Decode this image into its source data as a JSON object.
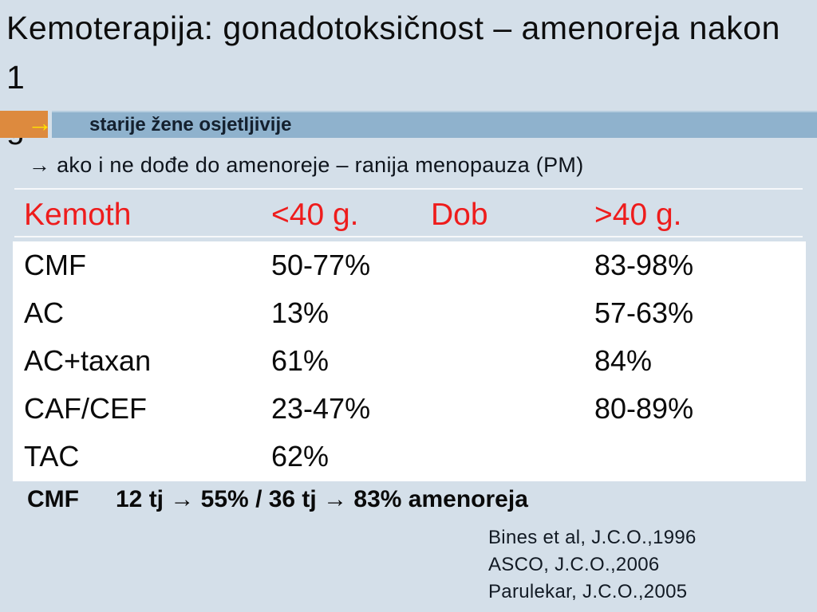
{
  "slide": {
    "title_line1": "Kemoterapija: gonadotoksičnost – amenoreja nakon 1",
    "title_line2": "g.",
    "highlight": {
      "arrow_icon": "→",
      "text": "starije žene osjetljivije"
    },
    "note": "→ ako i ne dođe do amenoreje – ranija menopauza (PM)",
    "table": {
      "header": {
        "col1": "Kemoth",
        "col2": "<40 g.",
        "col3": "Dob",
        "col4": ">40 g."
      },
      "rows": [
        [
          "CMF",
          "50-77%",
          "83-98%"
        ],
        [
          "AC",
          "13%",
          "57-63%"
        ],
        [
          "AC+taxan",
          "61%",
          "84%"
        ],
        [
          "CAF/CEF",
          "23-47%",
          "80-89%"
        ],
        [
          "TAC",
          "62%",
          ""
        ]
      ]
    },
    "summary": {
      "label": "CMF",
      "text": "12 tj → 55% / 36 tj → 83% amenoreja"
    },
    "citations": [
      "Bines et al, J.C.O.,1996",
      "ASCO, J.C.O.,2006",
      "Parulekar, J.C.O.,2005"
    ],
    "colors": {
      "background": "#d4dfe9",
      "bar_blue": "#8fb2cd",
      "accent_orange": "#dd8a3e",
      "accent_yellow": "#ffe100",
      "header_red": "#ee1c1c",
      "table_bg": "#ffffff",
      "text_dark": "#0d0d0d"
    }
  },
  "chart_data": {
    "type": "table",
    "title": "Kemoterapija: gonadotoksičnost – amenoreja nakon 1 g.",
    "columns": [
      "Kemoth",
      "<40 g.",
      ">40 g."
    ],
    "age_axis_label": "Dob",
    "rows": [
      {
        "regimen": "CMF",
        "under40": "50-77%",
        "over40": "83-98%"
      },
      {
        "regimen": "AC",
        "under40": "13%",
        "over40": "57-63%"
      },
      {
        "regimen": "AC+taxan",
        "under40": "61%",
        "over40": "84%"
      },
      {
        "regimen": "CAF/CEF",
        "under40": "23-47%",
        "over40": "80-89%"
      },
      {
        "regimen": "TAC",
        "under40": "62%",
        "over40": ""
      }
    ]
  }
}
